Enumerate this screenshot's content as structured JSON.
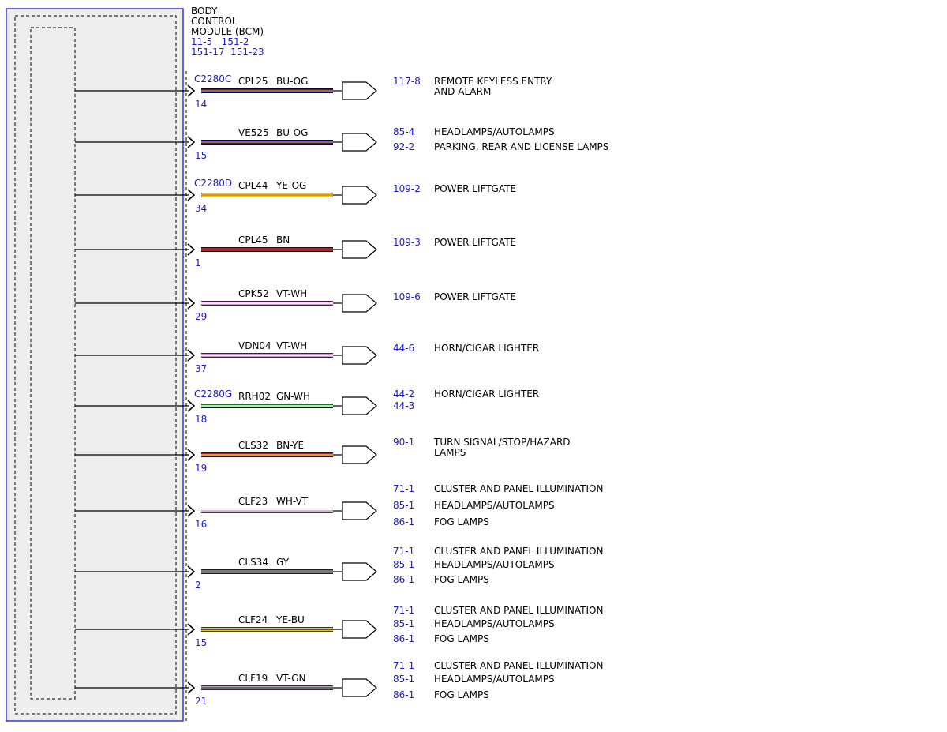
{
  "module": {
    "title_lines": [
      "BODY",
      "CONTROL",
      "MODULE (BCM)"
    ],
    "ref_lines": [
      "11-5   151-2",
      "151-17  151-23"
    ]
  },
  "colors": {
    "link": "#1a1ad0",
    "module_border": "#1a1ad0",
    "module_fill": "#eeeeee",
    "BU": "#1e1e9c",
    "OG": "#e07820",
    "YE": "#e8d000",
    "BN": "#a02828",
    "VT": "#d890d8",
    "WH": "#ffffff",
    "GN": "#1a7a1a",
    "GY": "#7a7a7a"
  },
  "circuits": [
    {
      "connector": "C2280C",
      "pin": "14",
      "circuit": "CPL25",
      "color": "BU-OG",
      "refs": [
        {
          "page": "117-8",
          "label": "REMOTE KEYLESS ENTRY\nAND ALARM"
        }
      ]
    },
    {
      "connector": "",
      "pin": "15",
      "circuit": "VE525",
      "color": "BU-OG",
      "refs": [
        {
          "page": "85-4",
          "label": "HEADLAMPS/AUTOLAMPS"
        },
        {
          "page": "92-2",
          "label": "PARKING, REAR AND LICENSE LAMPS"
        }
      ]
    },
    {
      "connector": "C2280D",
      "pin": "34",
      "circuit": "CPL44",
      "color": "YE-OG",
      "refs": [
        {
          "page": "109-2",
          "label": "POWER LIFTGATE"
        }
      ]
    },
    {
      "connector": "",
      "pin": "1",
      "circuit": "CPL45",
      "color": "BN",
      "refs": [
        {
          "page": "109-3",
          "label": "POWER LIFTGATE"
        }
      ]
    },
    {
      "connector": "",
      "pin": "29",
      "circuit": "CPK52",
      "color": "VT-WH",
      "refs": [
        {
          "page": "109-6",
          "label": "POWER LIFTGATE"
        }
      ]
    },
    {
      "connector": "",
      "pin": "37",
      "circuit": "VDN04",
      "color": "VT-WH",
      "refs": [
        {
          "page": "44-6",
          "label": "HORN/CIGAR LIGHTER"
        }
      ]
    },
    {
      "connector": "C2280G",
      "pin": "18",
      "circuit": "RRH02",
      "color": "GN-WH",
      "refs": [
        {
          "page": "44-2",
          "label": "HORN/CIGAR LIGHTER"
        },
        {
          "page": "44-3",
          "label": ""
        }
      ]
    },
    {
      "connector": "",
      "pin": "19",
      "circuit": "CLS32",
      "color": "BN-YE",
      "refs": [
        {
          "page": "90-1",
          "label": "TURN SIGNAL/STOP/HAZARD\nLAMPS"
        }
      ]
    },
    {
      "connector": "",
      "pin": "16",
      "circuit": "CLF23",
      "color": "WH-VT",
      "refs": [
        {
          "page": "71-1",
          "label": "CLUSTER AND PANEL ILLUMINATION"
        },
        {
          "page": "85-1",
          "label": "HEADLAMPS/AUTOLAMPS"
        },
        {
          "page": "86-1",
          "label": "FOG LAMPS"
        }
      ]
    },
    {
      "connector": "",
      "pin": "2",
      "circuit": "CLS34",
      "color": "GY",
      "refs": [
        {
          "page": "71-1",
          "label": "CLUSTER AND PANEL ILLUMINATION"
        },
        {
          "page": "85-1",
          "label": "HEADLAMPS/AUTOLAMPS"
        },
        {
          "page": "86-1",
          "label": "FOG LAMPS"
        }
      ]
    },
    {
      "connector": "",
      "pin": "15",
      "circuit": "CLF24",
      "color": "YE-BU",
      "refs": [
        {
          "page": "71-1",
          "label": "CLUSTER AND PANEL ILLUMINATION"
        },
        {
          "page": "85-1",
          "label": "HEADLAMPS/AUTOLAMPS"
        },
        {
          "page": "86-1",
          "label": "FOG LAMPS"
        }
      ]
    },
    {
      "connector": "",
      "pin": "21",
      "circuit": "CLF19",
      "color": "VT-GN",
      "refs": [
        {
          "page": "71-1",
          "label": "CLUSTER AND PANEL ILLUMINATION"
        },
        {
          "page": "85-1",
          "label": "HEADLAMPS/AUTOLAMPS"
        },
        {
          "page": "86-1",
          "label": "FOG LAMPS"
        }
      ]
    }
  ]
}
